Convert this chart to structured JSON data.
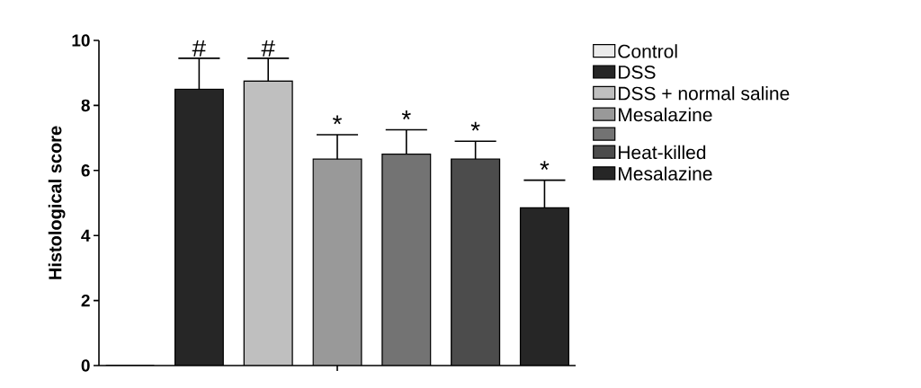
{
  "chart_data": {
    "type": "bar",
    "ylabel": "Histological score",
    "categories": [
      null
    ],
    "series": [
      {
        "name": "Control",
        "color": "#000000",
        "values": [
          0
        ]
      },
      {
        "name": "DSS",
        "color": "#000000",
        "values": [
          8.5
        ],
        "errors": [
          0.95
        ],
        "value_labels": [
          "#"
        ]
      },
      {
        "name": "DSS + normal saline",
        "color": "#000000",
        "values": [
          8.75
        ],
        "errors": [
          0.7
        ],
        "value_labels": [
          "#"
        ]
      },
      {
        "name": "Mesalazine",
        "color": "#000000",
        "values": [
          6.35
        ],
        "errors": [
          0.75
        ],
        "value_labels": [
          "*"
        ]
      },
      {
        "color": "#000000",
        "values": [
          6.5
        ],
        "errors": [
          0.75
        ],
        "value_labels": [
          "*"
        ]
      },
      {
        "name": "Heat-killed",
        "color": "#000000",
        "values": [
          6.35
        ],
        "errors": [
          0.55
        ],
        "value_labels": [
          "*"
        ]
      },
      {
        "name": "Mesalazine",
        "color": "#000000",
        "values": [
          4.85
        ],
        "errors": [
          0.85
        ],
        "value_labels": [
          "*"
        ]
      }
    ],
    "ylim": [
      0,
      10
    ],
    "yticks": [
      0,
      2,
      4,
      6,
      8,
      10
    ],
    "legend": "right"
  }
}
